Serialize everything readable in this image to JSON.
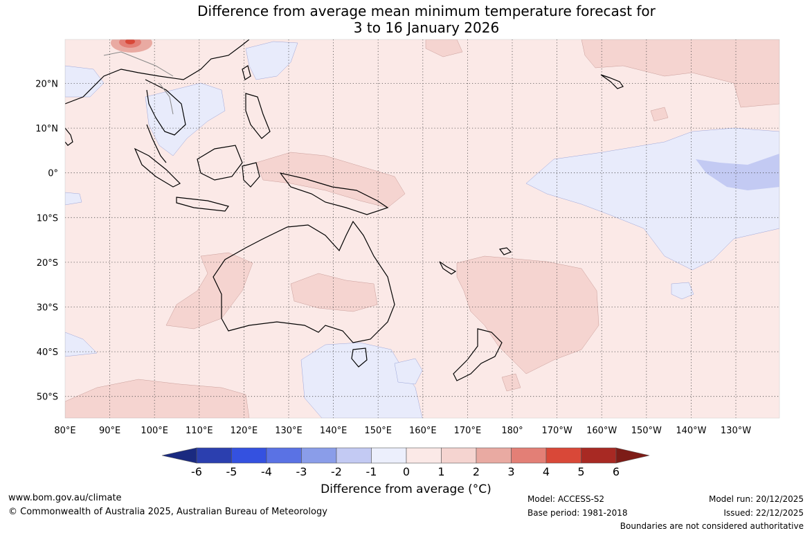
{
  "title_line1": "Difference from average mean minimum temperature forecast for",
  "title_line2": "3 to 16 January 2026",
  "map": {
    "lon_labels": [
      "80°E",
      "90°E",
      "100°E",
      "110°E",
      "120°E",
      "130°E",
      "140°E",
      "150°E",
      "160°E",
      "170°E",
      "180°",
      "170°W",
      "160°W",
      "150°W",
      "140°W",
      "130°W"
    ],
    "lat_labels": [
      "20°N",
      "10°N",
      "0°",
      "10°S",
      "20°S",
      "30°S",
      "40°S",
      "50°S"
    ],
    "colors": {
      "background": "#fbe9e7",
      "anomaly_1_2": "#f5d4d0",
      "anomaly_neg1_0": "#e8ebfb",
      "anomaly_neg2_neg1": "#c3caf3",
      "gridline": "#444444",
      "coastline": "#000000",
      "border": "#888888"
    }
  },
  "colorbar": {
    "tick_labels": [
      "-6",
      "-5",
      "-4",
      "-3",
      "-2",
      "-1",
      "0",
      "1",
      "2",
      "3",
      "4",
      "5",
      "6"
    ],
    "colors": [
      "#1a2a80",
      "#2b3faf",
      "#3451e0",
      "#5a72e4",
      "#8a9de9",
      "#c3caf3",
      "#eceffc",
      "#fbe9e7",
      "#f5d4d0",
      "#e9aaa2",
      "#e37f76",
      "#d94838",
      "#a82923",
      "#7d1c17"
    ],
    "label": "Difference from average (°C)"
  },
  "footer": {
    "website": "www.bom.gov.au/climate",
    "copyright": "© Commonwealth of Australia 2025, Australian Bureau of Meteorology",
    "model": "Model: ACCESS-S2",
    "base_period": "Base period: 1981-2018",
    "model_run": "Model run: 20/12/2025",
    "issued": "Issued: 22/12/2025",
    "disclaimer": "Boundaries are not considered authoritative"
  }
}
